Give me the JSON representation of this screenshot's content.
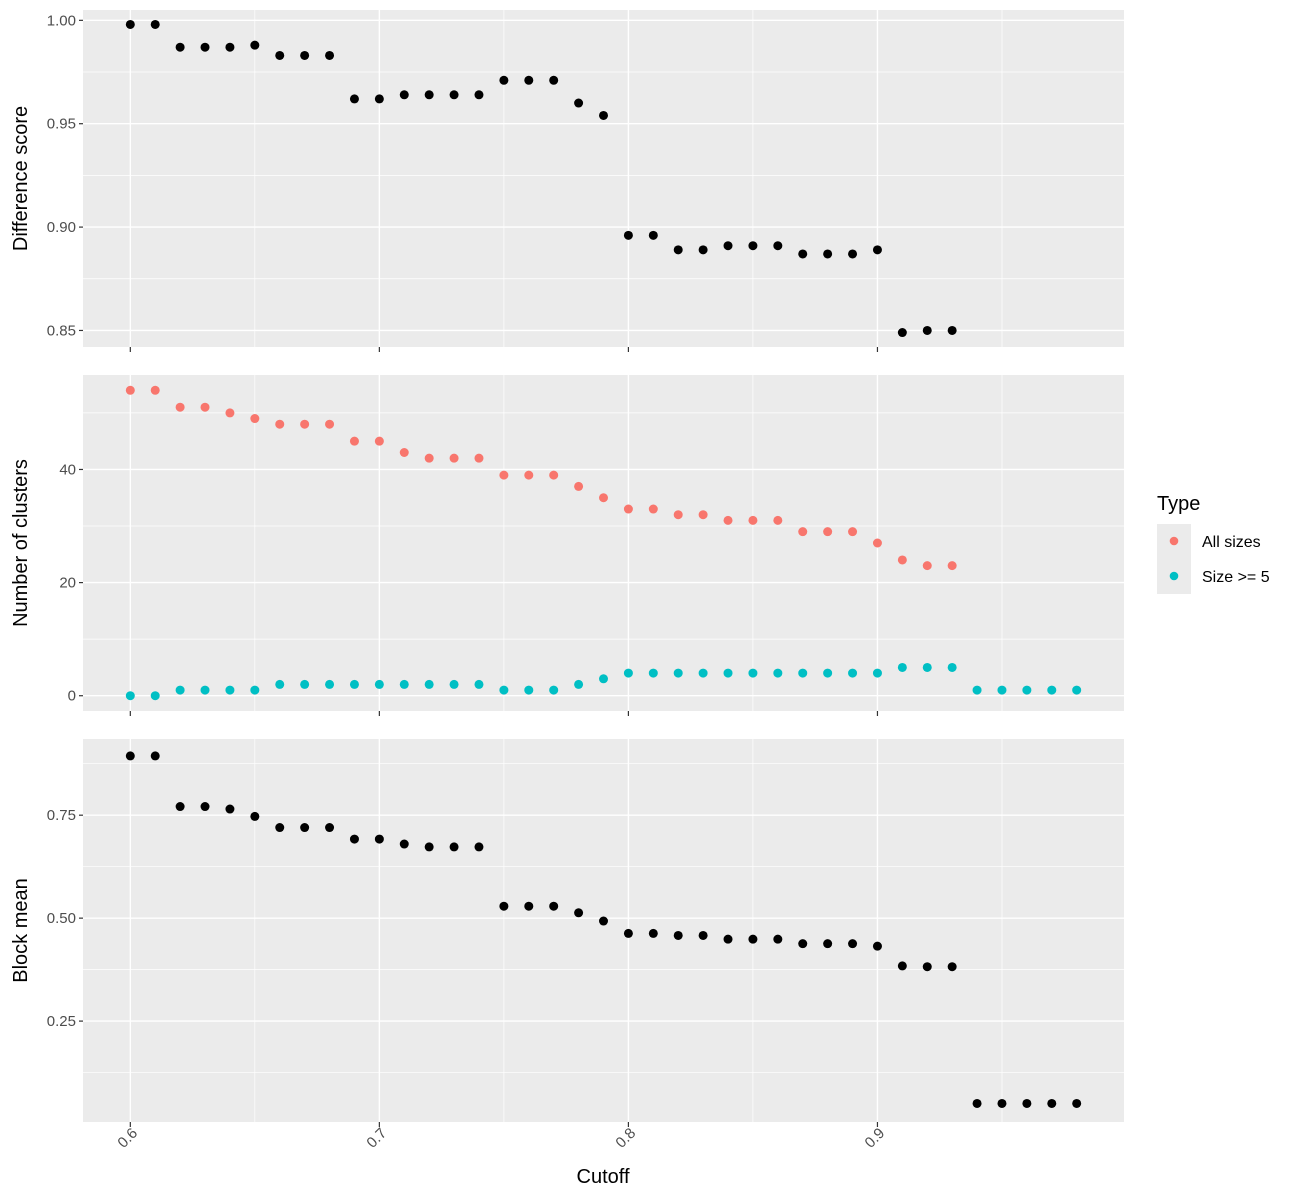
{
  "chart_data": {
    "type": "scatter",
    "xlabel": "Cutoff",
    "xlim": [
      0.581,
      0.999
    ],
    "x_ticks": [
      "0.6",
      "0.7",
      "0.8",
      "0.9"
    ],
    "x_tick_values": [
      0.6,
      0.7,
      0.8,
      0.9
    ],
    "x_minor_values": [
      0.65,
      0.75,
      0.85,
      0.95
    ],
    "legend": {
      "title": "Type",
      "position": "right",
      "entries": [
        {
          "label": "All sizes",
          "color": "#F8766D"
        },
        {
          "label": "Size >= 5",
          "color": "#00BFC4"
        }
      ]
    },
    "panels": [
      {
        "ylabel": "Difference score",
        "ylim": [
          0.842,
          1.005
        ],
        "y_ticks": [
          "0.85",
          "0.90",
          "0.95",
          "1.00"
        ],
        "y_tick_values": [
          0.85,
          0.9,
          0.95,
          1.0
        ],
        "y_minor_values": [
          0.875,
          0.925,
          0.975
        ],
        "series": [
          {
            "color": "#000000",
            "x": [
              0.6,
              0.61,
              0.62,
              0.63,
              0.64,
              0.65,
              0.66,
              0.67,
              0.68,
              0.69,
              0.7,
              0.71,
              0.72,
              0.73,
              0.74,
              0.75,
              0.76,
              0.77,
              0.78,
              0.79,
              0.8,
              0.81,
              0.82,
              0.83,
              0.84,
              0.85,
              0.86,
              0.87,
              0.88,
              0.89,
              0.9,
              0.91,
              0.92,
              0.93
            ],
            "y": [
              0.998,
              0.998,
              0.987,
              0.987,
              0.987,
              0.988,
              0.983,
              0.983,
              0.983,
              0.962,
              0.962,
              0.964,
              0.964,
              0.964,
              0.964,
              0.971,
              0.971,
              0.971,
              0.96,
              0.954,
              0.896,
              0.896,
              0.889,
              0.889,
              0.891,
              0.891,
              0.891,
              0.887,
              0.887,
              0.887,
              0.889,
              0.849,
              0.85,
              0.85
            ]
          }
        ]
      },
      {
        "ylabel": "Number of clusters",
        "ylim": [
          -2.7,
          56.7
        ],
        "y_ticks": [
          "0",
          "20",
          "40"
        ],
        "y_tick_values": [
          0,
          20,
          40
        ],
        "y_minor_values": [
          10,
          30,
          50
        ],
        "series": [
          {
            "name": "All sizes",
            "color": "#F8766D",
            "x": [
              0.6,
              0.61,
              0.62,
              0.63,
              0.64,
              0.65,
              0.66,
              0.67,
              0.68,
              0.69,
              0.7,
              0.71,
              0.72,
              0.73,
              0.74,
              0.75,
              0.76,
              0.77,
              0.78,
              0.79,
              0.8,
              0.81,
              0.82,
              0.83,
              0.84,
              0.85,
              0.86,
              0.87,
              0.88,
              0.89,
              0.9,
              0.91,
              0.92,
              0.93
            ],
            "y": [
              54,
              54,
              51,
              51,
              50,
              49,
              48,
              48,
              48,
              45,
              45,
              43,
              42,
              42,
              42,
              39,
              39,
              39,
              37,
              35,
              33,
              33,
              32,
              32,
              31,
              31,
              31,
              29,
              29,
              29,
              27,
              24,
              23,
              23
            ]
          },
          {
            "name": "Size >= 5",
            "color": "#00BFC4",
            "x": [
              0.6,
              0.61,
              0.62,
              0.63,
              0.64,
              0.65,
              0.66,
              0.67,
              0.68,
              0.69,
              0.7,
              0.71,
              0.72,
              0.73,
              0.74,
              0.75,
              0.76,
              0.77,
              0.78,
              0.79,
              0.8,
              0.81,
              0.82,
              0.83,
              0.84,
              0.85,
              0.86,
              0.87,
              0.88,
              0.89,
              0.9,
              0.91,
              0.92,
              0.93,
              0.94,
              0.95,
              0.96,
              0.97,
              0.98
            ],
            "y": [
              0,
              0,
              1,
              1,
              1,
              1,
              2,
              2,
              2,
              2,
              2,
              2,
              2,
              2,
              2,
              1,
              1,
              1,
              2,
              3,
              4,
              4,
              4,
              4,
              4,
              4,
              4,
              4,
              4,
              4,
              4,
              5,
              5,
              5,
              1,
              1,
              1,
              1,
              1
            ]
          }
        ]
      },
      {
        "ylabel": "Block mean",
        "ylim": [
          0.005,
          0.935
        ],
        "y_ticks": [
          "0.25",
          "0.50",
          "0.75"
        ],
        "y_tick_values": [
          0.25,
          0.5,
          0.75
        ],
        "y_minor_values": [
          0.125,
          0.375,
          0.625,
          0.875
        ],
        "series": [
          {
            "color": "#000000",
            "x": [
              0.6,
              0.61,
              0.62,
              0.63,
              0.64,
              0.65,
              0.66,
              0.67,
              0.68,
              0.69,
              0.7,
              0.71,
              0.72,
              0.73,
              0.74,
              0.75,
              0.76,
              0.77,
              0.78,
              0.79,
              0.8,
              0.81,
              0.82,
              0.83,
              0.84,
              0.85,
              0.86,
              0.87,
              0.88,
              0.89,
              0.9,
              0.91,
              0.92,
              0.93,
              0.94,
              0.95,
              0.96,
              0.97,
              0.98
            ],
            "y": [
              0.894,
              0.894,
              0.771,
              0.771,
              0.765,
              0.747,
              0.72,
              0.72,
              0.72,
              0.692,
              0.692,
              0.68,
              0.673,
              0.673,
              0.673,
              0.529,
              0.529,
              0.529,
              0.513,
              0.493,
              0.463,
              0.463,
              0.458,
              0.458,
              0.449,
              0.449,
              0.449,
              0.438,
              0.438,
              0.438,
              0.432,
              0.384,
              0.382,
              0.382,
              0.05,
              0.05,
              0.05,
              0.05,
              0.05
            ]
          }
        ]
      }
    ]
  }
}
